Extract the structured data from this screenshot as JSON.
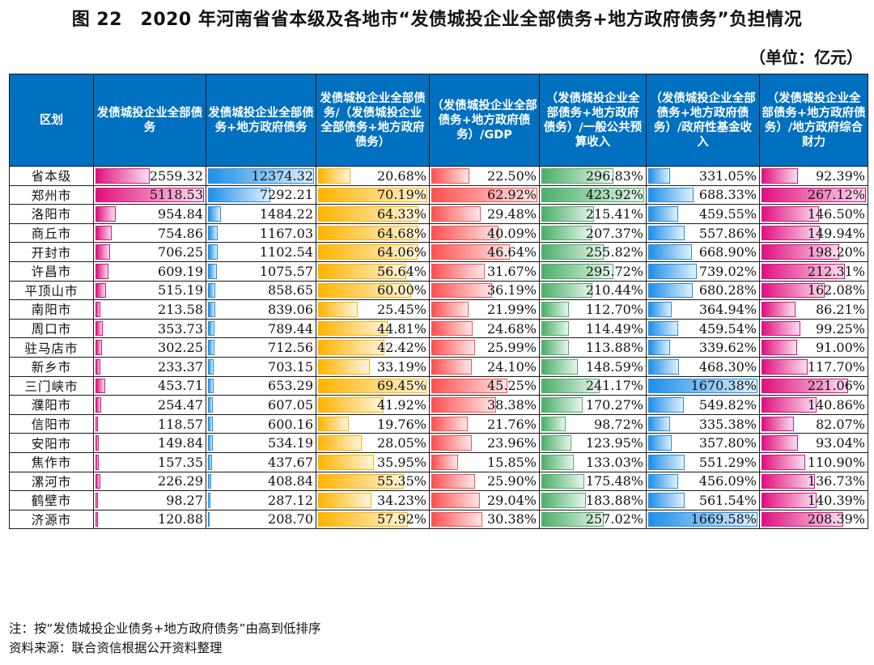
{
  "title": "图 22　2020 年河南省省本级及各地市“发债城投企业全部债务+地方政府债务”负担情况",
  "unit": "（单位：亿元）",
  "chart_data": {
    "type": "table",
    "title": "图 22　2020 年河南省省本级及各地市“发债城投企业全部债务+地方政府债务”负担情况",
    "columns": [
      "区划",
      "发债城投企业全部债务",
      "发债城投企业全部债务+地方政府债务",
      "发债城投企业全部债务/（发债城投企业全部债务+地方政府债务）",
      "（发债城投企业全部债务+地方政府债务）/GDP",
      "（发债城投企业全部债务+地方政府债务）/一般公共预算收入",
      "（发债城投企业全部债务+地方政府债务）/政府性基金收入",
      "（发债城投企业全部债务+地方政府债务）/地方政府综合财力"
    ],
    "bar_colors": [
      "#e0107f",
      "#1e8fe8",
      "#ffb300",
      "#ff5050",
      "#4caf6a",
      "#1e8fe8",
      "#e0107f"
    ],
    "rows": [
      {
        "name": "省本级",
        "values": [
          "2559.32",
          "12374.32",
          "20.68%",
          "22.50%",
          "296.83%",
          "331.05%",
          "92.39%"
        ]
      },
      {
        "name": "郑州市",
        "values": [
          "5118.53",
          "7292.21",
          "70.19%",
          "62.92%",
          "423.92%",
          "688.33%",
          "267.12%"
        ]
      },
      {
        "name": "洛阳市",
        "values": [
          "954.84",
          "1484.22",
          "64.33%",
          "29.48%",
          "215.41%",
          "459.55%",
          "146.50%"
        ]
      },
      {
        "name": "商丘市",
        "values": [
          "754.86",
          "1167.03",
          "64.68%",
          "40.09%",
          "207.37%",
          "557.86%",
          "149.94%"
        ]
      },
      {
        "name": "开封市",
        "values": [
          "706.25",
          "1102.54",
          "64.06%",
          "46.64%",
          "255.82%",
          "668.90%",
          "198.20%"
        ]
      },
      {
        "name": "许昌市",
        "values": [
          "609.19",
          "1075.57",
          "56.64%",
          "31.67%",
          "295.72%",
          "739.02%",
          "212.31%"
        ]
      },
      {
        "name": "平顶山市",
        "values": [
          "515.19",
          "858.65",
          "60.00%",
          "36.19%",
          "210.44%",
          "680.28%",
          "162.08%"
        ]
      },
      {
        "name": "南阳市",
        "values": [
          "213.58",
          "839.06",
          "25.45%",
          "21.99%",
          "112.70%",
          "364.94%",
          "86.21%"
        ]
      },
      {
        "name": "周口市",
        "values": [
          "353.73",
          "789.44",
          "44.81%",
          "24.68%",
          "114.49%",
          "459.54%",
          "99.25%"
        ]
      },
      {
        "name": "驻马店市",
        "values": [
          "302.25",
          "712.56",
          "42.42%",
          "25.99%",
          "113.88%",
          "339.62%",
          "91.00%"
        ]
      },
      {
        "name": "新乡市",
        "values": [
          "233.37",
          "703.15",
          "33.19%",
          "24.10%",
          "148.59%",
          "468.30%",
          "117.70%"
        ]
      },
      {
        "name": "三门峡市",
        "values": [
          "453.71",
          "653.29",
          "69.45%",
          "45.25%",
          "241.17%",
          "1670.38%",
          "221.06%"
        ]
      },
      {
        "name": "濮阳市",
        "values": [
          "254.47",
          "607.05",
          "41.92%",
          "38.38%",
          "170.27%",
          "549.82%",
          "140.86%"
        ]
      },
      {
        "name": "信阳市",
        "values": [
          "118.57",
          "600.16",
          "19.76%",
          "21.76%",
          "98.72%",
          "335.38%",
          "82.07%"
        ]
      },
      {
        "name": "安阳市",
        "values": [
          "149.84",
          "534.19",
          "28.05%",
          "23.96%",
          "123.95%",
          "357.80%",
          "93.04%"
        ]
      },
      {
        "name": "焦作市",
        "values": [
          "157.35",
          "437.67",
          "35.95%",
          "15.85%",
          "133.03%",
          "551.29%",
          "110.90%"
        ]
      },
      {
        "name": "漯河市",
        "values": [
          "226.29",
          "408.84",
          "55.35%",
          "25.90%",
          "175.48%",
          "456.09%",
          "136.73%"
        ]
      },
      {
        "name": "鹤壁市",
        "values": [
          "98.27",
          "287.12",
          "34.23%",
          "29.04%",
          "183.88%",
          "561.54%",
          "140.39%"
        ]
      },
      {
        "name": "济源市",
        "values": [
          "120.88",
          "208.70",
          "57.92%",
          "30.38%",
          "257.02%",
          "1669.58%",
          "208.39%"
        ]
      }
    ]
  },
  "notes": {
    "note": "注：按“发债城投企业债务+地方政府债务”由高到低排序",
    "source": "资料来源：联合资信根据公开资料整理"
  }
}
